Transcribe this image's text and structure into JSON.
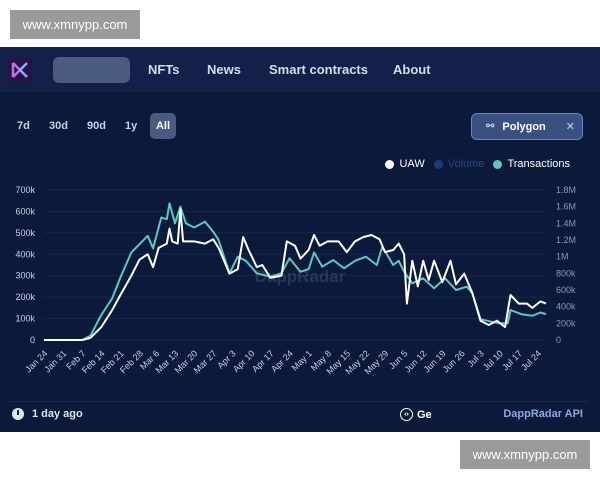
{
  "watermark": "www.xmnypp.com",
  "nav": {
    "items": [
      "NFTs",
      "News",
      "Smart contracts",
      "About"
    ]
  },
  "ranges": [
    "7d",
    "30d",
    "90d",
    "1y",
    "All"
  ],
  "active_range": "All",
  "chain_filter": {
    "label": "Polygon",
    "icon": "link-icon",
    "close": "✕"
  },
  "footer": {
    "updated": "1 day ago",
    "code_label": "Ge",
    "api_label": "DappRadar API"
  },
  "chart_data": {
    "type": "line",
    "watermark": "DappRadar",
    "legend": [
      {
        "name": "UAW",
        "color": "#ffffff"
      },
      {
        "name": "Volume",
        "color": "#1e3a78"
      },
      {
        "name": "Transactions",
        "color": "#5cc8c0"
      }
    ],
    "legend_position": "top-right",
    "grid": true,
    "x_ticks": [
      "Jan 24",
      "Jan 31",
      "Feb 7",
      "Feb 14",
      "Feb 21",
      "Feb 28",
      "Mar 6",
      "Mar 13",
      "Mar 20",
      "Mar 27",
      "Apr 3",
      "Apr 10",
      "Apr 17",
      "Apr 24",
      "May 1",
      "May 8",
      "May 15",
      "May 22",
      "May 29",
      "Jun 5",
      "Jun 12",
      "Jun 19",
      "Jun 26",
      "Jul 3",
      "Jul 10",
      "Jul 17",
      "Jul 24"
    ],
    "y_left": {
      "ticks": [
        "0",
        "100k",
        "200k",
        "300k",
        "400k",
        "500k",
        "600k",
        "700k"
      ],
      "range": [
        0,
        700000
      ]
    },
    "y_right": {
      "ticks": [
        "0",
        "200k",
        "400k",
        "600k",
        "800k",
        "1M",
        "1.2M",
        "1.4M",
        "1.6M",
        "1.8M"
      ],
      "range": [
        0,
        1800000
      ]
    },
    "series": [
      {
        "name": "Transactions",
        "axis": "right",
        "color": "#5cc8c0",
        "points": [
          [
            "Jan 24",
            0
          ],
          [
            "Feb 7",
            0
          ],
          [
            "Feb 10",
            50000
          ],
          [
            "Feb 14",
            300000
          ],
          [
            "Feb 18",
            500000
          ],
          [
            "Feb 21",
            750000
          ],
          [
            "Feb 25",
            1050000
          ],
          [
            "Feb 28",
            1150000
          ],
          [
            "Mar 3",
            1250000
          ],
          [
            "Mar 5",
            1100000
          ],
          [
            "Mar 8",
            1470000
          ],
          [
            "Mar 10",
            1450000
          ],
          [
            "Mar 11",
            1640000
          ],
          [
            "Mar 13",
            1400000
          ],
          [
            "Mar 15",
            1600000
          ],
          [
            "Mar 17",
            1400000
          ],
          [
            "Mar 20",
            1350000
          ],
          [
            "Mar 24",
            1420000
          ],
          [
            "Mar 27",
            1300000
          ],
          [
            "Mar 29",
            1200000
          ],
          [
            "Apr 2",
            800000
          ],
          [
            "Apr 5",
            1000000
          ],
          [
            "Apr 8",
            950000
          ],
          [
            "Apr 12",
            800000
          ],
          [
            "Apr 17",
            760000
          ],
          [
            "Apr 21",
            800000
          ],
          [
            "Apr 24",
            980000
          ],
          [
            "Apr 28",
            820000
          ],
          [
            "May 1",
            850000
          ],
          [
            "May 3",
            1050000
          ],
          [
            "May 6",
            880000
          ],
          [
            "May 10",
            960000
          ],
          [
            "May 14",
            860000
          ],
          [
            "May 18",
            950000
          ],
          [
            "May 22",
            1000000
          ],
          [
            "May 26",
            900000
          ],
          [
            "May 28",
            1120000
          ],
          [
            "Jun 1",
            900000
          ],
          [
            "Jun 3",
            950000
          ],
          [
            "Jun 5",
            820000
          ],
          [
            "Jun 8",
            680000
          ],
          [
            "Jun 12",
            740000
          ],
          [
            "Jun 16",
            620000
          ],
          [
            "Jun 20",
            740000
          ],
          [
            "Jun 24",
            600000
          ],
          [
            "Jun 28",
            640000
          ],
          [
            "Jun 30",
            560000
          ],
          [
            "Jul 3",
            250000
          ],
          [
            "Jul 7",
            220000
          ],
          [
            "Jul 10",
            200000
          ],
          [
            "Jul 13",
            200000
          ],
          [
            "Jul 14",
            360000
          ],
          [
            "Jul 18",
            310000
          ],
          [
            "Jul 22",
            290000
          ],
          [
            "Jul 25",
            330000
          ],
          [
            "Jul 27",
            310000
          ]
        ]
      },
      {
        "name": "UAW",
        "axis": "left",
        "color": "#ffffff",
        "points": [
          [
            "Jan 24",
            0
          ],
          [
            "Feb 7",
            0
          ],
          [
            "Feb 10",
            10000
          ],
          [
            "Feb 14",
            60000
          ],
          [
            "Feb 18",
            140000
          ],
          [
            "Feb 21",
            210000
          ],
          [
            "Feb 25",
            300000
          ],
          [
            "Feb 28",
            375000
          ],
          [
            "Mar 3",
            400000
          ],
          [
            "Mar 5",
            340000
          ],
          [
            "Mar 7",
            430000
          ],
          [
            "Mar 10",
            450000
          ],
          [
            "Mar 11",
            520000
          ],
          [
            "Mar 12",
            460000
          ],
          [
            "Mar 14",
            450000
          ],
          [
            "Mar 15",
            610000
          ],
          [
            "Mar 16",
            460000
          ],
          [
            "Mar 20",
            460000
          ],
          [
            "Mar 24",
            450000
          ],
          [
            "Mar 27",
            470000
          ],
          [
            "Mar 29",
            430000
          ],
          [
            "Apr 2",
            310000
          ],
          [
            "Apr 5",
            330000
          ],
          [
            "Apr 7",
            480000
          ],
          [
            "Apr 9",
            420000
          ],
          [
            "Apr 12",
            340000
          ],
          [
            "Apr 14",
            350000
          ],
          [
            "Apr 17",
            290000
          ],
          [
            "Apr 21",
            300000
          ],
          [
            "Apr 23",
            460000
          ],
          [
            "Apr 26",
            440000
          ],
          [
            "Apr 28",
            380000
          ],
          [
            "May 1",
            420000
          ],
          [
            "May 3",
            490000
          ],
          [
            "May 5",
            440000
          ],
          [
            "May 8",
            460000
          ],
          [
            "May 12",
            460000
          ],
          [
            "May 15",
            410000
          ],
          [
            "May 18",
            460000
          ],
          [
            "May 21",
            480000
          ],
          [
            "May 24",
            490000
          ],
          [
            "May 27",
            470000
          ],
          [
            "May 29",
            410000
          ],
          [
            "Jun 1",
            420000
          ],
          [
            "Jun 3",
            450000
          ],
          [
            "Jun 5",
            400000
          ],
          [
            "Jun 6",
            170000
          ],
          [
            "Jun 8",
            370000
          ],
          [
            "Jun 10",
            250000
          ],
          [
            "Jun 12",
            370000
          ],
          [
            "Jun 14",
            280000
          ],
          [
            "Jun 16",
            370000
          ],
          [
            "Jun 19",
            270000
          ],
          [
            "Jun 22",
            370000
          ],
          [
            "Jun 24",
            260000
          ],
          [
            "Jun 27",
            310000
          ],
          [
            "Jun 30",
            220000
          ],
          [
            "Jul 3",
            90000
          ],
          [
            "Jul 6",
            70000
          ],
          [
            "Jul 9",
            90000
          ],
          [
            "Jul 12",
            60000
          ],
          [
            "Jul 14",
            210000
          ],
          [
            "Jul 17",
            170000
          ],
          [
            "Jul 20",
            170000
          ],
          [
            "Jul 22",
            150000
          ],
          [
            "Jul 25",
            180000
          ],
          [
            "Jul 27",
            170000
          ]
        ]
      }
    ]
  }
}
